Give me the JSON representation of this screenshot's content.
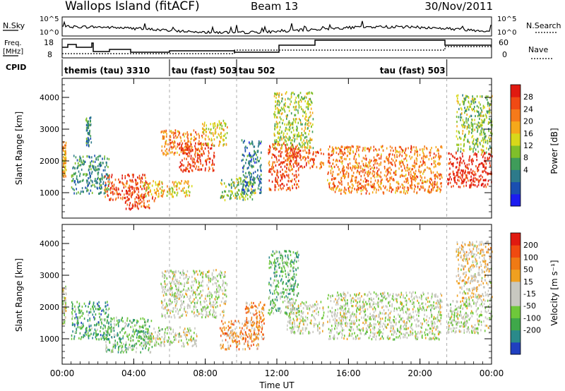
{
  "header": {
    "station": "Wallops Island (fitACF)",
    "beam": "Beam 13",
    "date": "30/Nov/2011"
  },
  "panels": {
    "nsky_label": "N.Sky",
    "nsky_ticks": [
      "10^5",
      "10^0"
    ],
    "nsearch_label": "N.Search",
    "freq_label": [
      "Freq.",
      "[MHz]"
    ],
    "freq_ticks": [
      "18",
      "8"
    ],
    "nave_label": "Nave",
    "nave_ticks": [
      "60",
      "0"
    ],
    "cpid_label": "CPID",
    "cpid_segments": [
      {
        "label": "themis (tau) 3310",
        "start_hour": 0
      },
      {
        "label": "tau (fast) 503",
        "start_hour": 6
      },
      {
        "label": "tau 502",
        "start_hour": 9.75
      },
      {
        "label": "tau (fast) 503",
        "start_hour": 21.5
      }
    ]
  },
  "chart_data": [
    {
      "type": "heatmap",
      "name": "power",
      "ylabel": "Slant Range [km]",
      "xlabel": "",
      "yticks": [
        "1000",
        "2000",
        "3000",
        "4000"
      ],
      "ylim": [
        200,
        4600
      ],
      "colorbar_label": "Power [dB]",
      "colorbar_ticks": [
        "28",
        "24",
        "20",
        "16",
        "12",
        "8",
        "4"
      ],
      "colors": [
        "#1c1cf0",
        "#1a4fb0",
        "#2d7a8a",
        "#3f9c5a",
        "#7fbf2a",
        "#d8d81a",
        "#f5a81a",
        "#f57a1a",
        "#f04a14",
        "#e01a10"
      ],
      "clusters": [
        {
          "t0": 0.0,
          "t1": 0.2,
          "r0": 1500,
          "r1": 2700,
          "level": 0.65
        },
        {
          "t0": 0.5,
          "t1": 2.6,
          "r0": 1000,
          "r1": 2200,
          "level": 0.3
        },
        {
          "t0": 1.3,
          "t1": 1.6,
          "r0": 2500,
          "r1": 3400,
          "level": 0.3
        },
        {
          "t0": 2.3,
          "t1": 4.8,
          "r0": 800,
          "r1": 1600,
          "level": 0.85
        },
        {
          "t0": 3.5,
          "t1": 5.2,
          "r0": 500,
          "r1": 900,
          "level": 0.85
        },
        {
          "t0": 4.5,
          "t1": 7.3,
          "r0": 900,
          "r1": 1400,
          "level": 0.6
        },
        {
          "t0": 5.5,
          "t1": 7.8,
          "r0": 2200,
          "r1": 3000,
          "level": 0.75
        },
        {
          "t0": 6.5,
          "t1": 8.5,
          "r0": 1700,
          "r1": 2600,
          "level": 0.9
        },
        {
          "t0": 7.8,
          "t1": 9.2,
          "r0": 2500,
          "r1": 3300,
          "level": 0.6
        },
        {
          "t0": 8.8,
          "t1": 10.8,
          "r0": 800,
          "r1": 1500,
          "level": 0.45
        },
        {
          "t0": 10.0,
          "t1": 11.1,
          "r0": 1000,
          "r1": 2700,
          "level": 0.25
        },
        {
          "t0": 11.5,
          "t1": 13.2,
          "r0": 1100,
          "r1": 2600,
          "level": 0.85
        },
        {
          "t0": 12.5,
          "t1": 14.6,
          "r0": 1800,
          "r1": 2400,
          "level": 0.8
        },
        {
          "t0": 11.8,
          "t1": 14.0,
          "r0": 2400,
          "r1": 4200,
          "level": 0.5
        },
        {
          "t0": 14.8,
          "t1": 21.2,
          "r0": 1000,
          "r1": 2500,
          "level": 0.75
        },
        {
          "t0": 21.5,
          "t1": 24.0,
          "r0": 1200,
          "r1": 2300,
          "level": 0.95
        },
        {
          "t0": 22.0,
          "t1": 24.0,
          "r0": 2300,
          "r1": 4100,
          "level": 0.45
        }
      ]
    },
    {
      "type": "heatmap",
      "name": "velocity",
      "ylabel": "Slant Range [km]",
      "xlabel": "Time UT",
      "yticks": [
        "1000",
        "2000",
        "3000",
        "4000"
      ],
      "ylim": [
        200,
        4600
      ],
      "colorbar_label": "Velocity [m s⁻¹]",
      "colorbar_ticks": [
        "200",
        "100",
        "50",
        "15",
        "-15",
        "-50",
        "-100",
        "-200"
      ],
      "colors": [
        "#2040c0",
        "#2a8a8a",
        "#3fa84a",
        "#6ec83a",
        "#c8c8c0",
        "#c8c8c0",
        "#f0a020",
        "#f07a14",
        "#f04a10",
        "#e01a10"
      ],
      "clusters": [
        {
          "t0": 0.0,
          "t1": 0.2,
          "r0": 1500,
          "r1": 2700,
          "level": 0.5
        },
        {
          "t0": 0.5,
          "t1": 2.6,
          "r0": 1000,
          "r1": 2200,
          "level": 0.25
        },
        {
          "t0": 2.3,
          "t1": 5.0,
          "r0": 600,
          "r1": 1700,
          "level": 0.3
        },
        {
          "t0": 4.5,
          "t1": 7.5,
          "r0": 800,
          "r1": 1400,
          "level": 0.47
        },
        {
          "t0": 5.5,
          "t1": 9.2,
          "r0": 1700,
          "r1": 3200,
          "level": 0.47
        },
        {
          "t0": 8.8,
          "t1": 11.0,
          "r0": 700,
          "r1": 1600,
          "level": 0.68
        },
        {
          "t0": 10.2,
          "t1": 11.3,
          "r0": 1000,
          "r1": 2200,
          "level": 0.7
        },
        {
          "t0": 11.5,
          "t1": 13.2,
          "r0": 1800,
          "r1": 3800,
          "level": 0.32
        },
        {
          "t0": 12.5,
          "t1": 14.6,
          "r0": 1200,
          "r1": 2200,
          "level": 0.47
        },
        {
          "t0": 14.8,
          "t1": 21.2,
          "r0": 1000,
          "r1": 2500,
          "level": 0.47
        },
        {
          "t0": 21.5,
          "t1": 24.0,
          "r0": 1200,
          "r1": 2300,
          "level": 0.47
        },
        {
          "t0": 22.0,
          "t1": 24.0,
          "r0": 2300,
          "r1": 4100,
          "level": 0.55
        }
      ]
    }
  ],
  "xaxis": {
    "ticks": [
      "00:00",
      "04:00",
      "08:00",
      "12:00",
      "16:00",
      "20:00",
      "00:00"
    ],
    "xlim": [
      0,
      24
    ]
  }
}
